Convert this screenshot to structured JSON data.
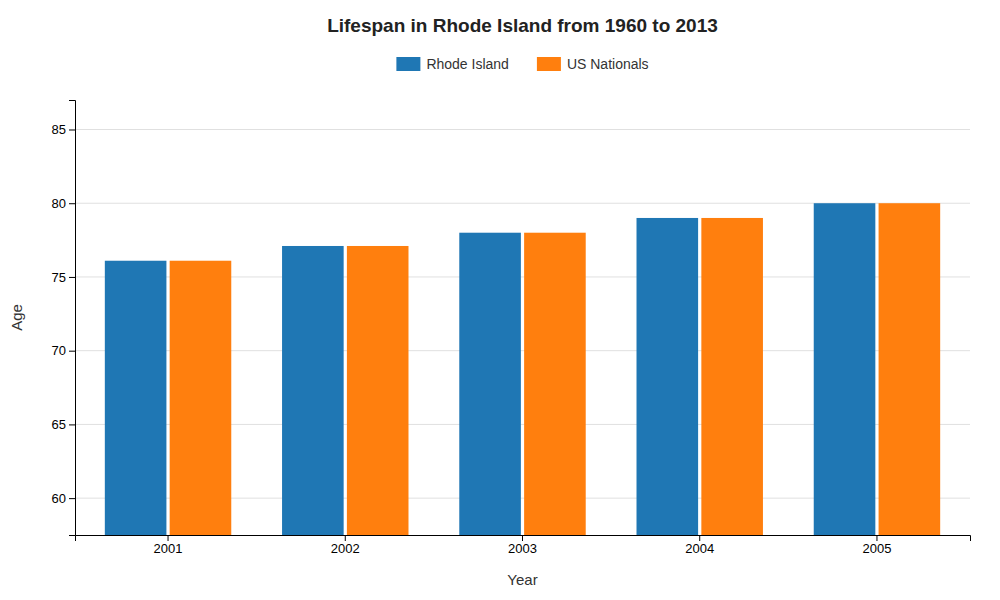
{
  "chart_data": {
    "type": "bar",
    "title": "Lifespan in Rhode Island from 1960 to 2013",
    "xlabel": "Year",
    "ylabel": "Age",
    "categories": [
      "2001",
      "2002",
      "2003",
      "2004",
      "2005"
    ],
    "series": [
      {
        "name": "Rhode Island",
        "values": [
          76.1,
          77.1,
          78.0,
          79.0,
          80.0
        ]
      },
      {
        "name": "US Nationals",
        "values": [
          76.1,
          77.1,
          78.0,
          79.0,
          80.0
        ]
      }
    ],
    "ylim": [
      57.5,
      87
    ],
    "yticks": [
      60,
      65,
      70,
      75,
      80,
      85
    ],
    "grid": true,
    "legend": "top"
  }
}
